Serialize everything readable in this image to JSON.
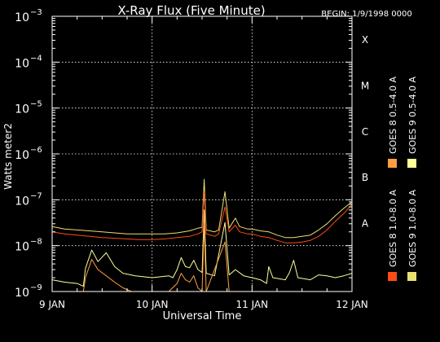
{
  "chart_data": {
    "type": "line",
    "title": "X-Ray Flux (Five Minute)",
    "begin_label": "BEGIN: 1/9/1998 0000",
    "xlabel": "Universal Time",
    "ylabel": "Watts meter2",
    "x_unit": "hours since 1998-01-09 00:00 UT",
    "xlim": [
      0,
      72
    ],
    "x_ticks": [
      {
        "x": 0,
        "label": "9 JAN"
      },
      {
        "x": 24,
        "label": "10 JAN"
      },
      {
        "x": 48,
        "label": "11 JAN"
      },
      {
        "x": 72,
        "label": "12 JAN"
      }
    ],
    "y_scale": "log",
    "ylim": [
      1e-09,
      0.001
    ],
    "y_ticks": [
      {
        "y": 0.001,
        "base": "10",
        "exp": "−3"
      },
      {
        "y": 0.0001,
        "base": "10",
        "exp": "−4"
      },
      {
        "y": 1e-05,
        "base": "10",
        "exp": "−5"
      },
      {
        "y": 1e-06,
        "base": "10",
        "exp": "−6"
      },
      {
        "y": 1e-07,
        "base": "10",
        "exp": "−7"
      },
      {
        "y": 1e-08,
        "base": "10",
        "exp": "−8"
      },
      {
        "y": 1e-09,
        "base": "10",
        "exp": "−9"
      }
    ],
    "flare_classes": [
      {
        "label": "X",
        "y": 0.000316
      },
      {
        "label": "M",
        "y": 3.16e-05
      },
      {
        "label": "C",
        "y": 3.16e-06
      },
      {
        "label": "B",
        "y": 3.16e-07
      },
      {
        "label": "A",
        "y": 3.16e-08
      }
    ],
    "grid": "dotted at decades 1e-8 to 1e-4; vertical at day boundaries",
    "legend_position": "right, rotated",
    "series": [
      {
        "name": "GOES 9 1.0-8.0 A",
        "color": "#e8e070",
        "points": [
          [
            0,
            2.6e-08
          ],
          [
            3,
            2.3e-08
          ],
          [
            6,
            2.2e-08
          ],
          [
            9,
            2.1e-08
          ],
          [
            12,
            2e-08
          ],
          [
            15,
            1.9e-08
          ],
          [
            18,
            1.8e-08
          ],
          [
            21,
            1.8e-08
          ],
          [
            24,
            1.8e-08
          ],
          [
            27,
            1.8e-08
          ],
          [
            30,
            1.9e-08
          ],
          [
            33,
            2.1e-08
          ],
          [
            35,
            2.4e-08
          ],
          [
            36,
            2.5e-08
          ],
          [
            36.5,
            2.8e-07
          ],
          [
            37,
            2.2e-08
          ],
          [
            39,
            2e-08
          ],
          [
            40,
            2.2e-08
          ],
          [
            41.5,
            1.5e-07
          ],
          [
            42.5,
            2.4e-08
          ],
          [
            44,
            4e-08
          ],
          [
            45,
            2.6e-08
          ],
          [
            47,
            2.3e-08
          ],
          [
            48,
            2.3e-08
          ],
          [
            50,
            2.1e-08
          ],
          [
            52,
            2e-08
          ],
          [
            54,
            1.7e-08
          ],
          [
            56,
            1.5e-08
          ],
          [
            58,
            1.5e-08
          ],
          [
            60,
            1.6e-08
          ],
          [
            62,
            1.7e-08
          ],
          [
            64,
            2.2e-08
          ],
          [
            66,
            3e-08
          ],
          [
            68,
            4.5e-08
          ],
          [
            70,
            6.5e-08
          ],
          [
            72,
            9e-08
          ]
        ]
      },
      {
        "name": "GOES 8 1.0-8.0 A",
        "color": "#ff4c14",
        "points": [
          [
            0,
            2e-08
          ],
          [
            3,
            1.8e-08
          ],
          [
            6,
            1.7e-08
          ],
          [
            9,
            1.6e-08
          ],
          [
            12,
            1.5e-08
          ],
          [
            15,
            1.45e-08
          ],
          [
            18,
            1.4e-08
          ],
          [
            21,
            1.35e-08
          ],
          [
            24,
            1.35e-08
          ],
          [
            27,
            1.4e-08
          ],
          [
            30,
            1.5e-08
          ],
          [
            33,
            1.6e-08
          ],
          [
            35,
            1.8e-08
          ],
          [
            36,
            2e-08
          ],
          [
            36.5,
            1.5e-07
          ],
          [
            37,
            1.8e-08
          ],
          [
            39,
            1.6e-08
          ],
          [
            40,
            1.8e-08
          ],
          [
            41.5,
            7e-08
          ],
          [
            42.5,
            2e-08
          ],
          [
            44,
            2.8e-08
          ],
          [
            45,
            2e-08
          ],
          [
            47,
            1.8e-08
          ],
          [
            48,
            1.8e-08
          ],
          [
            50,
            1.6e-08
          ],
          [
            52,
            1.5e-08
          ],
          [
            54,
            1.3e-08
          ],
          [
            56,
            1.15e-08
          ],
          [
            58,
            1.15e-08
          ],
          [
            60,
            1.2e-08
          ],
          [
            62,
            1.3e-08
          ],
          [
            64,
            1.6e-08
          ],
          [
            66,
            2.2e-08
          ],
          [
            68,
            3.4e-08
          ],
          [
            70,
            5e-08
          ],
          [
            72,
            8e-08
          ]
        ]
      },
      {
        "name": "GOES 9 0.5-4.0 A",
        "color": "#ffff99",
        "points": [
          [
            0,
            1.8e-09
          ],
          [
            3,
            1.6e-09
          ],
          [
            6,
            1.5e-09
          ],
          [
            7.5,
            1.3e-09
          ],
          [
            8,
            3.2e-09
          ],
          [
            9.5,
            8e-09
          ],
          [
            11,
            4.5e-09
          ],
          [
            13,
            7e-09
          ],
          [
            15,
            3.5e-09
          ],
          [
            17,
            2.5e-09
          ],
          [
            20,
            2.2e-09
          ],
          [
            24,
            2e-09
          ],
          [
            28,
            2.2e-09
          ],
          [
            29,
            2e-09
          ],
          [
            30,
            3e-09
          ],
          [
            31,
            5.5e-09
          ],
          [
            32,
            3.5e-09
          ],
          [
            33,
            3.3e-09
          ],
          [
            34,
            4.8e-09
          ],
          [
            35,
            3e-09
          ],
          [
            36,
            2.6e-09
          ],
          [
            36.5,
            6e-08
          ],
          [
            37,
            2.5e-09
          ],
          [
            39,
            2.2e-09
          ],
          [
            41.5,
            3.2e-08
          ],
          [
            42.5,
            2.3e-09
          ],
          [
            44,
            3e-09
          ],
          [
            46,
            2.2e-09
          ],
          [
            48,
            2e-09
          ],
          [
            50,
            1.8e-09
          ],
          [
            51.5,
            1.5e-09
          ],
          [
            52,
            3.5e-09
          ],
          [
            53,
            2e-09
          ],
          [
            56,
            1.8e-09
          ],
          [
            57,
            2.6e-09
          ],
          [
            58,
            4.8e-09
          ],
          [
            59,
            2e-09
          ],
          [
            62,
            1.8e-09
          ],
          [
            64,
            2.3e-09
          ],
          [
            66,
            2.2e-09
          ],
          [
            68,
            2e-09
          ],
          [
            70,
            2.2e-09
          ],
          [
            72,
            2.5e-09
          ]
        ]
      },
      {
        "name": "GOES 8 0.5-4.0 A",
        "color": "#ffa040",
        "points": [
          [
            0,
            1e-09
          ],
          [
            7.5,
            1e-09
          ],
          [
            8,
            2e-09
          ],
          [
            9.5,
            5e-09
          ],
          [
            11,
            3e-09
          ],
          [
            13,
            2.2e-09
          ],
          [
            15,
            1.6e-09
          ],
          [
            17,
            1.2e-09
          ],
          [
            19,
            1e-09
          ],
          [
            28,
            1e-09
          ],
          [
            30,
            1.5e-09
          ],
          [
            31,
            2.5e-09
          ],
          [
            32,
            1.8e-09
          ],
          [
            33,
            1.6e-09
          ],
          [
            34,
            2.2e-09
          ],
          [
            35,
            1.2e-09
          ],
          [
            36,
            1e-09
          ],
          [
            36.5,
            3e-08
          ],
          [
            37,
            1e-09
          ],
          [
            41.5,
            1.2e-08
          ],
          [
            42.5,
            1e-09
          ],
          [
            72,
            1e-09
          ]
        ]
      }
    ]
  }
}
